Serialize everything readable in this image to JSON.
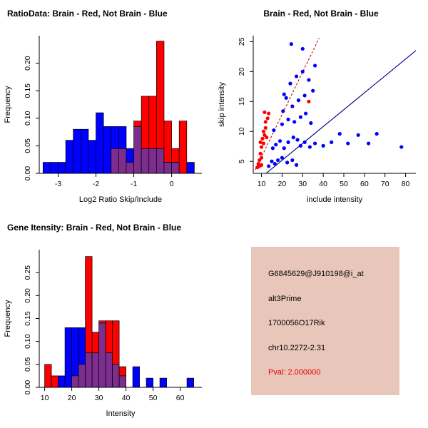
{
  "page": {
    "background": "#ffffff"
  },
  "colors": {
    "brain": "#ff0000",
    "not_brain": "#0000ff",
    "overlap": "#7c2d8e",
    "fit_line_blue": "#00008b",
    "fit_line_red": "#cc0000"
  },
  "info_box": {
    "background": "#e8c7ba",
    "lines": [
      {
        "text": "G6845629@J910198@i_at",
        "color": "#000000"
      },
      {
        "text": "alt3Prime",
        "color": "#000000"
      },
      {
        "text": "1700056O17Rik",
        "color": "#000000"
      },
      {
        "text": "chr10.2272-2.31",
        "color": "#000000"
      },
      {
        "text": "Pval: 2.000000",
        "color": "#e60000"
      }
    ]
  },
  "chart_data": [
    {
      "type": "bar",
      "subtype": "overlaid-histogram",
      "title": "RatioData: Brain - Red, Not Brain - Blue",
      "xlabel": "Log2 Ratio Skip/Include",
      "ylabel": "Frequency",
      "xlim": [
        -3.5,
        0.8
      ],
      "ylim": [
        0,
        0.25
      ],
      "xticks": [
        -3,
        -2,
        -1,
        0
      ],
      "xtick_labels": [
        "-3",
        "-2",
        "-1",
        "0"
      ],
      "yticks": [
        0,
        0.05,
        0.1,
        0.15,
        0.2
      ],
      "ytick_labels": [
        "0.00",
        "0.05",
        "0.10",
        "0.15",
        "0.20"
      ],
      "bin_start": -3.4,
      "bin_width": 0.2,
      "grid": false,
      "overlap_color": "#7c2d8e",
      "series": [
        {
          "name": "Not Brain",
          "color": "#0000ff",
          "values": [
            0.02,
            0.02,
            0.02,
            0.06,
            0.08,
            0.08,
            0.06,
            0.11,
            0.085,
            0.085,
            0.085,
            0.045,
            0.085,
            0.045,
            0.045,
            0.045,
            0.02,
            0.02,
            0,
            0.02
          ]
        },
        {
          "name": "Brain",
          "color": "#ff0000",
          "values": [
            0,
            0,
            0,
            0,
            0,
            0,
            0,
            0,
            0,
            0.045,
            0.045,
            0.02,
            0.095,
            0.14,
            0.14,
            0.24,
            0.095,
            0.045,
            0.095,
            0
          ]
        }
      ]
    },
    {
      "type": "scatter",
      "title": "Brain - Red, Not Brain - Blue",
      "xlabel": "include intensity",
      "ylabel": "skip intensity",
      "xlim": [
        6,
        85
      ],
      "ylim": [
        3,
        26
      ],
      "xticks": [
        10,
        20,
        30,
        40,
        50,
        60,
        70,
        80
      ],
      "xtick_labels": [
        "10",
        "20",
        "30",
        "40",
        "50",
        "60",
        "70",
        "80"
      ],
      "yticks": [
        5,
        10,
        15,
        20,
        25
      ],
      "ytick_labels": [
        "5",
        "10",
        "15",
        "20",
        "25"
      ],
      "grid": false,
      "series": [
        {
          "name": "Brain",
          "color": "#ff0000",
          "points": [
            [
              8,
              4
            ],
            [
              8.5,
              4.6
            ],
            [
              9,
              4.2
            ],
            [
              9,
              5.2
            ],
            [
              9.5,
              6.3
            ],
            [
              9.5,
              8.2
            ],
            [
              10,
              4.4
            ],
            [
              10,
              5.6
            ],
            [
              10,
              7.4
            ],
            [
              10.5,
              8.8
            ],
            [
              11,
              8
            ],
            [
              11,
              10
            ],
            [
              11.5,
              9.4
            ],
            [
              11.5,
              13.2
            ],
            [
              12,
              10.6
            ],
            [
              12,
              11.6
            ],
            [
              12.5,
              9
            ],
            [
              13,
              12.2
            ],
            [
              13.5,
              13
            ],
            [
              33,
              15
            ]
          ]
        },
        {
          "name": "Not Brain",
          "color": "#0000ff",
          "points": [
            [
              13.5,
              4.2
            ],
            [
              15,
              5
            ],
            [
              16.5,
              4.6
            ],
            [
              18,
              5.2
            ],
            [
              20,
              5.6
            ],
            [
              22.5,
              4.8
            ],
            [
              25,
              5.2
            ],
            [
              27,
              4.4
            ],
            [
              15.5,
              7.2
            ],
            [
              17,
              7.8
            ],
            [
              19,
              8.4
            ],
            [
              21,
              7.2
            ],
            [
              23,
              8.2
            ],
            [
              25.5,
              9
            ],
            [
              27.5,
              8.6
            ],
            [
              29,
              7.6
            ],
            [
              31,
              8.2
            ],
            [
              33.5,
              7.4
            ],
            [
              36,
              8
            ],
            [
              40,
              7.6
            ],
            [
              44,
              8.2
            ],
            [
              48,
              9.6
            ],
            [
              52,
              8
            ],
            [
              57,
              9.4
            ],
            [
              62,
              8
            ],
            [
              66,
              9.6
            ],
            [
              78,
              7.4
            ],
            [
              20,
              11.2
            ],
            [
              23,
              12
            ],
            [
              26,
              11.6
            ],
            [
              29,
              12.4
            ],
            [
              31.5,
              13
            ],
            [
              34,
              11.4
            ],
            [
              25,
              14.2
            ],
            [
              28,
              15.2
            ],
            [
              31,
              16
            ],
            [
              35,
              16.8
            ],
            [
              21,
              16.2
            ],
            [
              24,
              18
            ],
            [
              27,
              19.2
            ],
            [
              30,
              20
            ],
            [
              33,
              18.6
            ],
            [
              24.5,
              24.6
            ],
            [
              30,
              23.8
            ],
            [
              36,
              21
            ],
            [
              16,
              10.2
            ],
            [
              20.5,
              13.4
            ],
            [
              22,
              15.6
            ]
          ]
        }
      ],
      "lines": [
        {
          "name": "brain-fit-line",
          "color": "#cc0000",
          "dash": true,
          "x1": 7,
          "y1": 3.6,
          "x2": 38,
          "y2": 25.6
        },
        {
          "name": "not-brain-fit-line",
          "color": "#00008b",
          "dash": false,
          "x1": 8,
          "y1": 1.8,
          "x2": 85,
          "y2": 23.5
        }
      ]
    },
    {
      "type": "bar",
      "subtype": "overlaid-histogram",
      "title": "Gene Itensity: Brain - Red, Not Brain - Blue",
      "xlabel": "Intensity",
      "ylabel": "Frequency",
      "xlim": [
        8,
        68
      ],
      "ylim": [
        0,
        0.3
      ],
      "xticks": [
        10,
        20,
        30,
        40,
        50,
        60
      ],
      "xtick_labels": [
        "10",
        "20",
        "30",
        "40",
        "50",
        "60"
      ],
      "yticks": [
        0,
        0.05,
        0.1,
        0.15,
        0.2,
        0.25
      ],
      "ytick_labels": [
        "0.00",
        "0.05",
        "0.10",
        "0.15",
        "0.20",
        "0.25"
      ],
      "bin_start": 10,
      "bin_width": 2.5,
      "grid": false,
      "overlap_color": "#7c2d8e",
      "series": [
        {
          "name": "Not Brain",
          "color": "#0000ff",
          "values": [
            0,
            0,
            0.025,
            0.13,
            0.13,
            0.13,
            0.075,
            0.075,
            0.14,
            0.075,
            0.05,
            0.025,
            0,
            0.045,
            0,
            0.02,
            0,
            0.02,
            0,
            0,
            0,
            0.02,
            0
          ]
        },
        {
          "name": "Brain",
          "color": "#ff0000",
          "values": [
            0.05,
            0.025,
            0,
            0,
            0.025,
            0.05,
            0.285,
            0.12,
            0.145,
            0.145,
            0.145,
            0.045,
            0,
            0,
            0,
            0,
            0,
            0,
            0,
            0,
            0,
            0,
            0
          ]
        }
      ]
    }
  ]
}
